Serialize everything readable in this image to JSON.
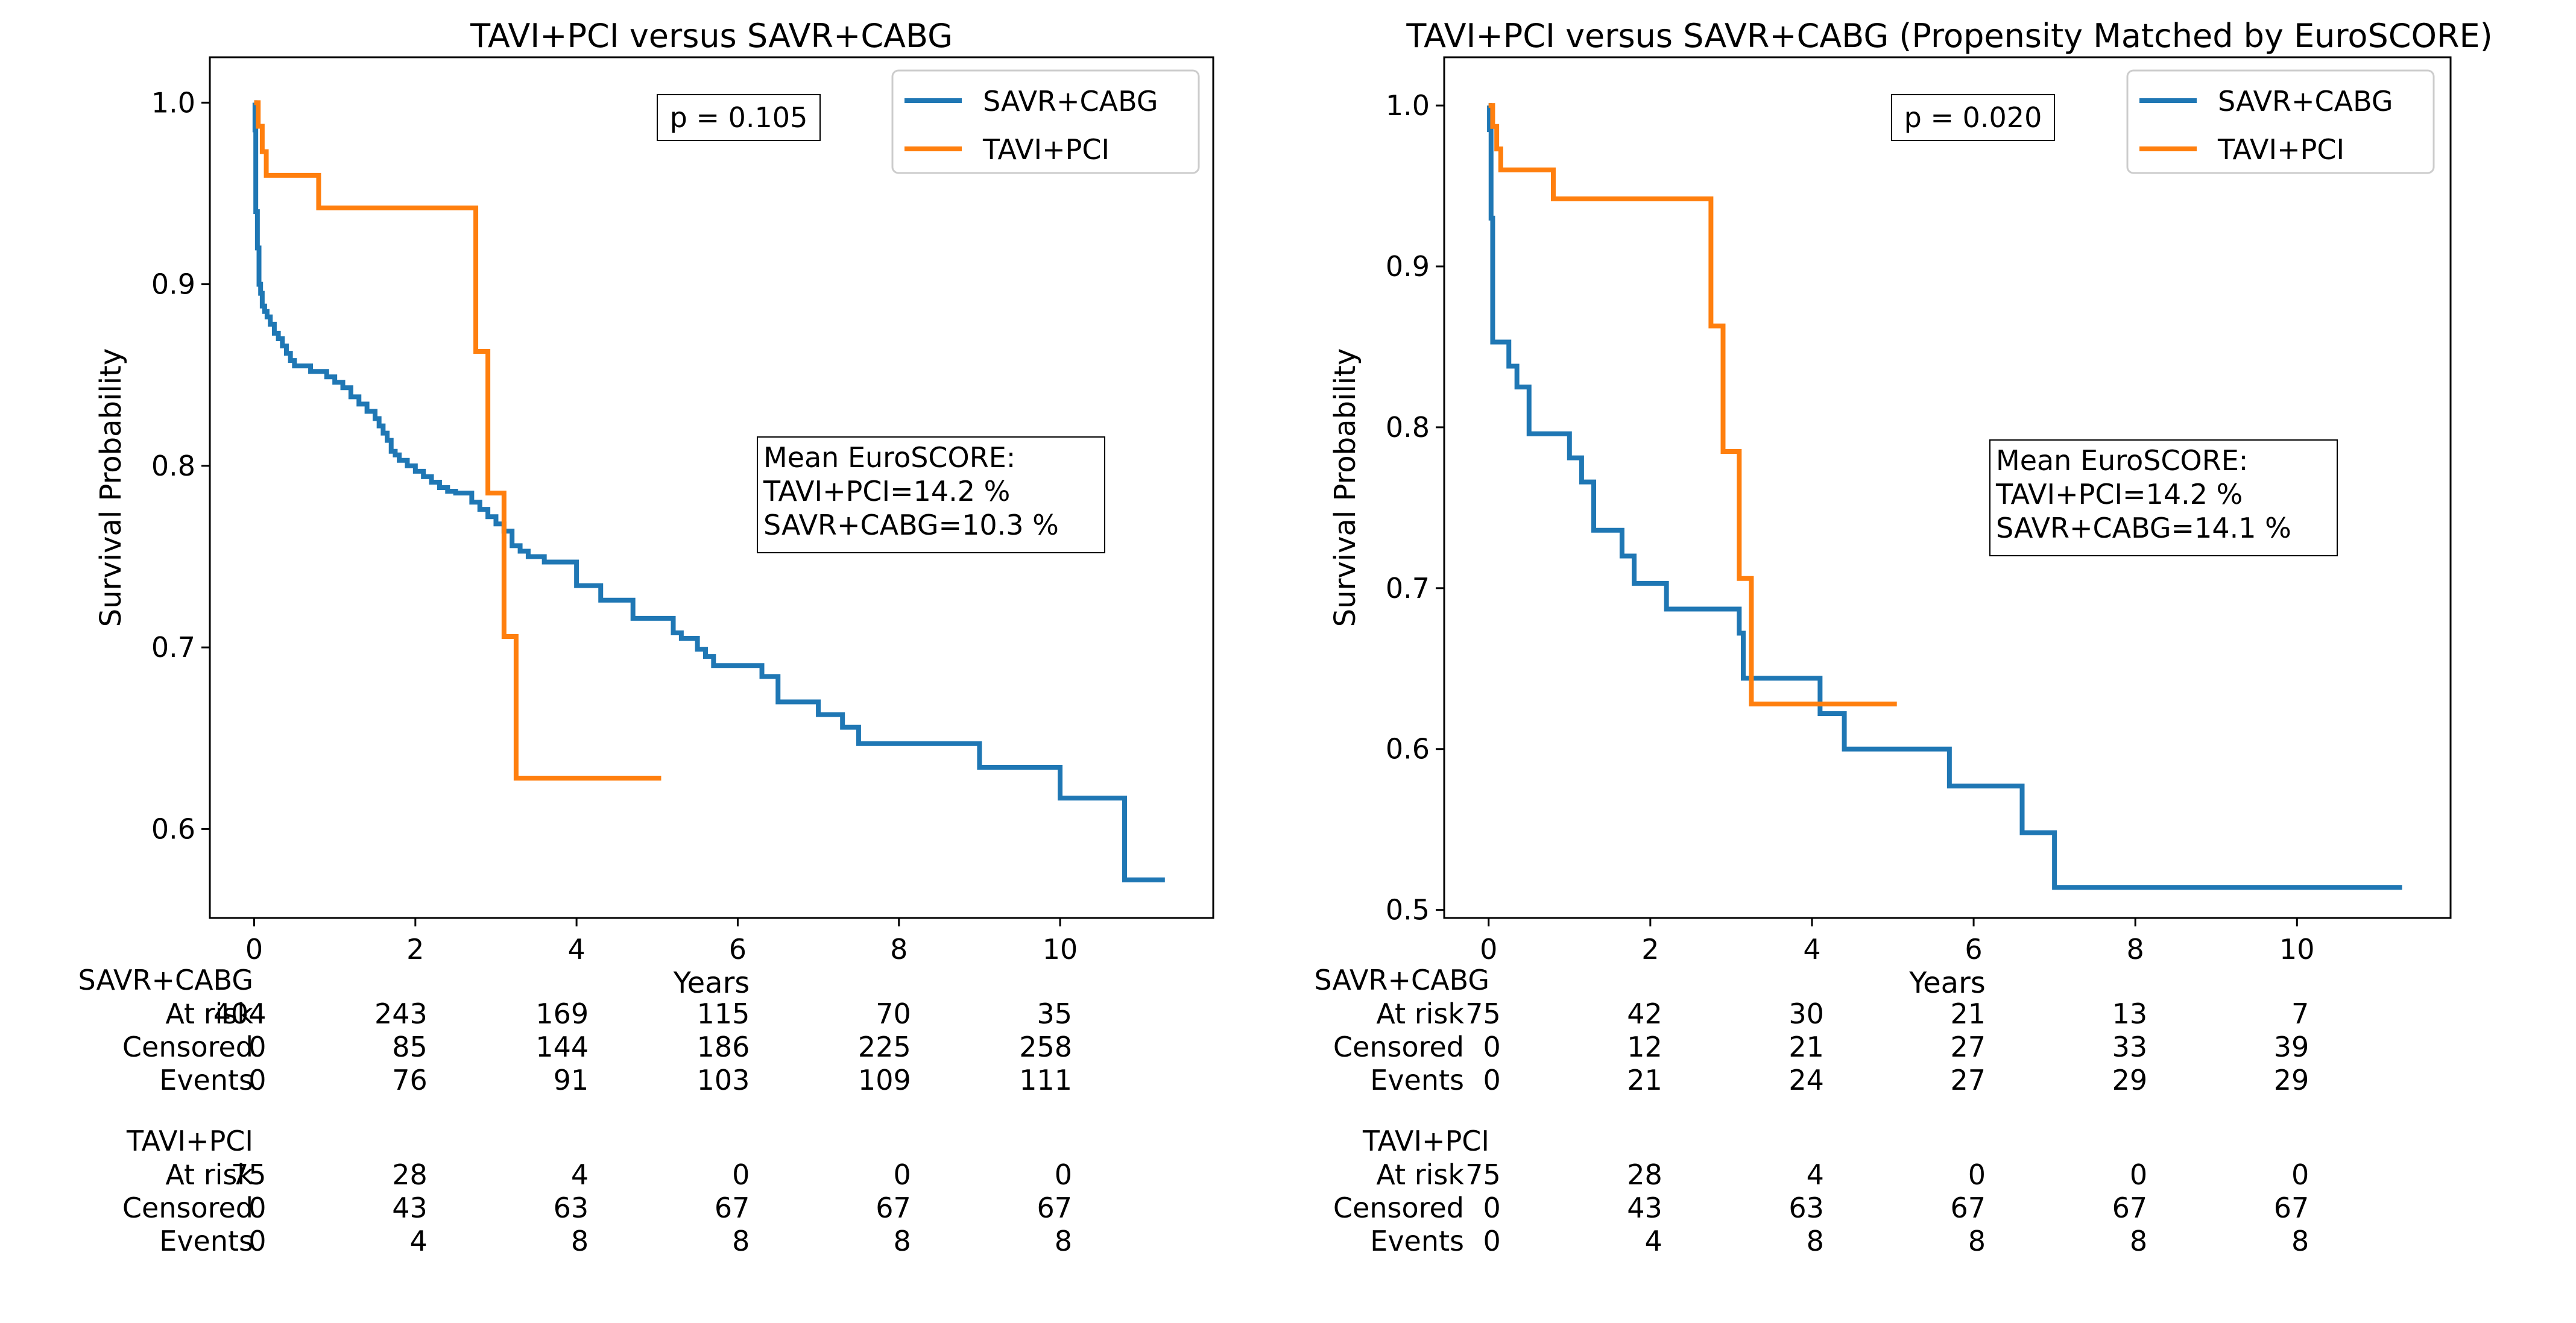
{
  "colors": {
    "savr": "#1f77b4",
    "tavi": "#ff7f0e",
    "axis": "#000000"
  },
  "chart_data": [
    {
      "type": "line",
      "title": "TAVI+PCI versus SAVR+CABG",
      "xlabel": "Years",
      "ylabel": "Survival Probability",
      "xlim": [
        -0.55,
        11.9
      ],
      "ylim": [
        0.551,
        1.025
      ],
      "xticks": [
        "0",
        "2",
        "4",
        "6",
        "8",
        "10"
      ],
      "yticks": [
        "0.6",
        "0.7",
        "0.8",
        "0.9",
        "1.0"
      ],
      "legend_position": "top-right",
      "pvalue_label": "p = 0.105",
      "annotation_lines": [
        "Mean EuroSCORE:",
        "TAVI+PCI=14.2 %",
        "SAVR+CABG=10.3 %"
      ],
      "series": [
        {
          "name": "SAVR+CABG",
          "color": "#1f77b4",
          "x": [
            0.0,
            0.01,
            0.02,
            0.04,
            0.06,
            0.08,
            0.1,
            0.13,
            0.16,
            0.2,
            0.25,
            0.3,
            0.35,
            0.4,
            0.45,
            0.5,
            0.6,
            0.7,
            0.9,
            1.0,
            1.1,
            1.2,
            1.3,
            1.4,
            1.5,
            1.55,
            1.6,
            1.65,
            1.7,
            1.75,
            1.8,
            1.9,
            2.0,
            2.1,
            2.2,
            2.3,
            2.4,
            2.5,
            2.7,
            2.8,
            2.9,
            3.0,
            3.1,
            3.2,
            3.3,
            3.4,
            3.6,
            3.9,
            4.0,
            4.3,
            4.7,
            5.2,
            5.3,
            5.5,
            5.6,
            5.7,
            6.3,
            6.5,
            7.0,
            7.3,
            7.5,
            9.0,
            10.0,
            10.8,
            11.3
          ],
          "y": [
            1.0,
            0.985,
            0.94,
            0.92,
            0.9,
            0.895,
            0.888,
            0.885,
            0.882,
            0.878,
            0.873,
            0.87,
            0.866,
            0.862,
            0.858,
            0.855,
            0.855,
            0.852,
            0.849,
            0.846,
            0.843,
            0.838,
            0.834,
            0.83,
            0.826,
            0.822,
            0.818,
            0.814,
            0.808,
            0.806,
            0.803,
            0.8,
            0.797,
            0.794,
            0.791,
            0.788,
            0.786,
            0.785,
            0.78,
            0.776,
            0.772,
            0.768,
            0.764,
            0.756,
            0.753,
            0.75,
            0.747,
            0.747,
            0.734,
            0.726,
            0.716,
            0.708,
            0.705,
            0.699,
            0.695,
            0.69,
            0.684,
            0.67,
            0.663,
            0.656,
            0.647,
            0.634,
            0.617,
            0.572,
            0.572
          ]
        },
        {
          "name": "TAVI+PCI",
          "color": "#ff7f0e",
          "x": [
            0.0,
            0.05,
            0.1,
            0.15,
            0.8,
            2.75,
            2.9,
            3.1,
            3.25,
            5.05
          ],
          "y": [
            1.0,
            0.987,
            0.973,
            0.96,
            0.942,
            0.863,
            0.785,
            0.706,
            0.628,
            0.628
          ]
        }
      ],
      "risk_table": {
        "columns": [
          "0",
          "2",
          "4",
          "6",
          "8",
          "10"
        ],
        "groups": [
          {
            "name": "SAVR+CABG",
            "rows": [
              {
                "label": "At risk",
                "values": [
                  "404",
                  "243",
                  "169",
                  "115",
                  "70",
                  "35"
                ]
              },
              {
                "label": "Censored",
                "values": [
                  "0",
                  "85",
                  "144",
                  "186",
                  "225",
                  "258"
                ]
              },
              {
                "label": "Events",
                "values": [
                  "0",
                  "76",
                  "91",
                  "103",
                  "109",
                  "111"
                ]
              }
            ]
          },
          {
            "name": "TAVI+PCI",
            "rows": [
              {
                "label": "At risk",
                "values": [
                  "75",
                  "28",
                  "4",
                  "0",
                  "0",
                  "0"
                ]
              },
              {
                "label": "Censored",
                "values": [
                  "0",
                  "43",
                  "63",
                  "67",
                  "67",
                  "67"
                ]
              },
              {
                "label": "Events",
                "values": [
                  "0",
                  "4",
                  "8",
                  "8",
                  "8",
                  "8"
                ]
              }
            ]
          }
        ]
      }
    },
    {
      "type": "line",
      "title": "TAVI+PCI versus SAVR+CABG (Propensity Matched by EuroSCORE)",
      "xlabel": "Years",
      "ylabel": "Survival Probability",
      "xlim": [
        -0.55,
        11.9
      ],
      "ylim": [
        0.495,
        1.03
      ],
      "xticks": [
        "0",
        "2",
        "4",
        "6",
        "8",
        "10"
      ],
      "yticks": [
        "0.5",
        "0.6",
        "0.7",
        "0.8",
        "0.9",
        "1.0"
      ],
      "legend_position": "top-right",
      "pvalue_label": "p = 0.020",
      "annotation_lines": [
        "Mean EuroSCORE:",
        "TAVI+PCI=14.2 %",
        "SAVR+CABG=14.1 %"
      ],
      "series": [
        {
          "name": "SAVR+CABG",
          "color": "#1f77b4",
          "x": [
            0.0,
            0.01,
            0.03,
            0.05,
            0.25,
            0.35,
            0.5,
            0.5,
            1.0,
            1.15,
            1.3,
            1.65,
            1.8,
            2.2,
            3.1,
            3.15,
            4.1,
            4.4,
            5.7,
            6.6,
            7.0,
            11.3
          ],
          "y": [
            1.0,
            0.985,
            0.93,
            0.853,
            0.838,
            0.825,
            0.81,
            0.796,
            0.781,
            0.766,
            0.736,
            0.72,
            0.703,
            0.687,
            0.672,
            0.644,
            0.622,
            0.6,
            0.577,
            0.548,
            0.514,
            0.514
          ]
        },
        {
          "name": "TAVI+PCI",
          "color": "#ff7f0e",
          "x": [
            0.0,
            0.05,
            0.1,
            0.15,
            0.8,
            2.75,
            2.9,
            3.1,
            3.25,
            5.05
          ],
          "y": [
            1.0,
            0.987,
            0.973,
            0.96,
            0.942,
            0.863,
            0.785,
            0.706,
            0.628,
            0.628
          ]
        }
      ],
      "risk_table": {
        "columns": [
          "0",
          "2",
          "4",
          "6",
          "8",
          "10"
        ],
        "groups": [
          {
            "name": "SAVR+CABG",
            "rows": [
              {
                "label": "At risk",
                "values": [
                  "75",
                  "42",
                  "30",
                  "21",
                  "13",
                  "7"
                ]
              },
              {
                "label": "Censored",
                "values": [
                  "0",
                  "12",
                  "21",
                  "27",
                  "33",
                  "39"
                ]
              },
              {
                "label": "Events",
                "values": [
                  "0",
                  "21",
                  "24",
                  "27",
                  "29",
                  "29"
                ]
              }
            ]
          },
          {
            "name": "TAVI+PCI",
            "rows": [
              {
                "label": "At risk",
                "values": [
                  "75",
                  "28",
                  "4",
                  "0",
                  "0",
                  "0"
                ]
              },
              {
                "label": "Censored",
                "values": [
                  "0",
                  "43",
                  "63",
                  "67",
                  "67",
                  "67"
                ]
              },
              {
                "label": "Events",
                "values": [
                  "0",
                  "4",
                  "8",
                  "8",
                  "8",
                  "8"
                ]
              }
            ]
          }
        ]
      }
    }
  ]
}
